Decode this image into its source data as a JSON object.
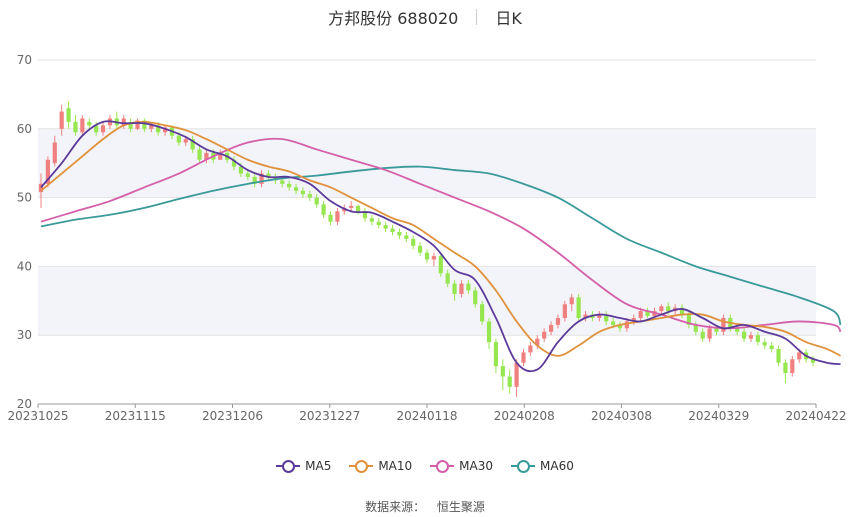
{
  "header": {
    "title": "方邦股份 688020",
    "period": "日K"
  },
  "source": {
    "label": "数据来源：",
    "value": "恒生聚源"
  },
  "colors": {
    "up": "#f08080",
    "down": "#96e650",
    "ma5": "#5b3a9a",
    "ma10": "#e0913c",
    "ma30": "#d45fa8",
    "ma60": "#3a9a9a",
    "band": "#f3f4f9",
    "grid": "#e3e3e3"
  },
  "chart_data": {
    "type": "candlestick",
    "ylim": [
      20,
      70
    ],
    "yticks": [
      20,
      30,
      40,
      50,
      60,
      70
    ],
    "xticks": [
      "20231025",
      "20231115",
      "20231206",
      "20231227",
      "20240118",
      "20240208",
      "20240308",
      "20240329",
      "20240422"
    ],
    "legend": [
      "MA5",
      "MA10",
      "MA30",
      "MA60"
    ],
    "legend_position": "bottom",
    "candles": [
      [
        50.8,
        52.0,
        53.5,
        48.5
      ],
      [
        52.0,
        55.5,
        56.0,
        51.5
      ],
      [
        55.0,
        58.0,
        59.0,
        54.5
      ],
      [
        60.0,
        62.5,
        63.5,
        59.0
      ],
      [
        63.0,
        61.0,
        64.0,
        60.0
      ],
      [
        61.0,
        59.5,
        62.0,
        59.0
      ],
      [
        59.5,
        61.5,
        62.0,
        59.0
      ],
      [
        61.0,
        60.5,
        61.5,
        60.0
      ],
      [
        60.5,
        59.5,
        61.0,
        59.0
      ],
      [
        59.5,
        60.5,
        61.0,
        59.0
      ],
      [
        60.5,
        61.5,
        62.0,
        60.0
      ],
      [
        61.5,
        60.5,
        62.5,
        60.0
      ],
      [
        60.5,
        61.5,
        62.0,
        60.0
      ],
      [
        61.0,
        60.0,
        61.5,
        59.5
      ],
      [
        60.0,
        61.2,
        61.5,
        59.8
      ],
      [
        61.2,
        60.0,
        61.5,
        59.5
      ],
      [
        60.0,
        60.5,
        61.0,
        59.5
      ],
      [
        60.5,
        59.5,
        61.0,
        59.0
      ],
      [
        59.5,
        60.2,
        60.5,
        59.0
      ],
      [
        60.2,
        59.0,
        60.5,
        58.5
      ],
      [
        59.0,
        58.0,
        59.5,
        57.5
      ],
      [
        58.0,
        58.5,
        59.0,
        57.5
      ],
      [
        58.5,
        57.0,
        59.0,
        56.5
      ],
      [
        57.0,
        55.5,
        57.5,
        55.0
      ],
      [
        55.5,
        56.5,
        57.0,
        55.0
      ],
      [
        56.5,
        55.5,
        57.0,
        55.0
      ],
      [
        55.5,
        56.5,
        57.0,
        55.5
      ],
      [
        56.5,
        55.5,
        57.0,
        55.0
      ],
      [
        55.5,
        54.5,
        56.0,
        54.0
      ],
      [
        54.5,
        53.5,
        55.0,
        53.0
      ],
      [
        53.5,
        53.0,
        54.0,
        52.5
      ],
      [
        53.0,
        52.0,
        53.5,
        51.5
      ],
      [
        52.0,
        53.5,
        54.0,
        51.5
      ],
      [
        53.5,
        53.0,
        54.0,
        52.5
      ],
      [
        53.0,
        52.5,
        53.5,
        52.0
      ],
      [
        52.5,
        52.0,
        53.0,
        51.5
      ],
      [
        52.0,
        51.5,
        52.5,
        51.0
      ],
      [
        51.5,
        51.0,
        52.0,
        50.5
      ],
      [
        51.0,
        50.5,
        51.5,
        50.0
      ],
      [
        50.5,
        50.0,
        51.0,
        49.5
      ],
      [
        50.0,
        49.0,
        50.5,
        48.5
      ],
      [
        49.0,
        47.5,
        49.5,
        47.0
      ],
      [
        47.5,
        46.5,
        48.0,
        46.0
      ],
      [
        46.5,
        48.0,
        48.5,
        46.0
      ],
      [
        48.0,
        48.5,
        49.0,
        47.5
      ],
      [
        48.5,
        48.8,
        49.5,
        48.0
      ],
      [
        48.8,
        48.0,
        49.0,
        47.5
      ],
      [
        48.0,
        47.0,
        48.5,
        46.5
      ],
      [
        47.0,
        46.5,
        47.5,
        46.0
      ],
      [
        46.5,
        46.0,
        47.0,
        45.5
      ],
      [
        46.0,
        45.5,
        46.5,
        45.0
      ],
      [
        45.5,
        45.0,
        46.0,
        44.5
      ],
      [
        45.0,
        44.5,
        45.5,
        44.0
      ],
      [
        44.5,
        44.0,
        45.0,
        43.5
      ],
      [
        44.0,
        43.0,
        44.5,
        42.5
      ],
      [
        43.0,
        42.0,
        43.5,
        41.5
      ],
      [
        42.0,
        41.0,
        42.5,
        40.5
      ],
      [
        41.0,
        41.5,
        42.0,
        40.0
      ],
      [
        41.5,
        39.0,
        42.0,
        38.5
      ],
      [
        39.0,
        37.5,
        39.5,
        37.0
      ],
      [
        37.5,
        36.0,
        38.0,
        35.0
      ],
      [
        36.0,
        37.5,
        38.0,
        35.5
      ],
      [
        37.5,
        36.5,
        38.0,
        36.0
      ],
      [
        36.5,
        34.5,
        37.0,
        34.0
      ],
      [
        34.5,
        32.0,
        35.0,
        31.5
      ],
      [
        32.0,
        29.0,
        32.5,
        28.0
      ],
      [
        29.0,
        25.5,
        29.5,
        24.5
      ],
      [
        25.5,
        24.0,
        26.5,
        22.0
      ],
      [
        24.0,
        22.5,
        25.0,
        21.5
      ],
      [
        22.5,
        26.0,
        26.5,
        21.0
      ],
      [
        26.0,
        27.5,
        28.0,
        25.5
      ],
      [
        27.5,
        28.5,
        29.0,
        27.0
      ],
      [
        28.5,
        29.5,
        30.0,
        28.0
      ],
      [
        29.5,
        30.5,
        31.0,
        29.0
      ],
      [
        30.5,
        31.5,
        32.0,
        30.0
      ],
      [
        31.5,
        32.5,
        33.0,
        31.0
      ],
      [
        32.5,
        34.5,
        35.0,
        32.0
      ],
      [
        34.5,
        35.5,
        36.0,
        33.5
      ],
      [
        35.5,
        32.5,
        36.0,
        32.0
      ],
      [
        32.5,
        33.0,
        33.5,
        32.0
      ],
      [
        33.0,
        32.5,
        33.5,
        32.0
      ],
      [
        32.5,
        33.0,
        33.5,
        32.0
      ],
      [
        33.0,
        32.0,
        33.5,
        31.5
      ],
      [
        32.0,
        31.5,
        32.5,
        31.0
      ],
      [
        31.5,
        31.0,
        32.0,
        30.5
      ],
      [
        31.0,
        32.0,
        32.5,
        30.5
      ],
      [
        32.0,
        32.5,
        33.0,
        31.5
      ],
      [
        32.5,
        33.5,
        34.0,
        32.0
      ],
      [
        33.5,
        32.8,
        34.0,
        32.5
      ],
      [
        32.8,
        33.5,
        34.0,
        32.5
      ],
      [
        33.5,
        34.2,
        34.5,
        33.0
      ],
      [
        34.2,
        33.5,
        34.8,
        33.0
      ],
      [
        33.5,
        34.0,
        34.5,
        33.0
      ],
      [
        34.0,
        33.0,
        34.5,
        32.5
      ],
      [
        33.0,
        31.5,
        33.5,
        31.0
      ],
      [
        31.5,
        30.5,
        32.0,
        30.0
      ],
      [
        30.5,
        29.5,
        31.0,
        29.0
      ],
      [
        29.5,
        31.0,
        31.5,
        29.0
      ],
      [
        31.0,
        30.5,
        31.5,
        30.0
      ],
      [
        30.5,
        32.5,
        33.0,
        30.0
      ],
      [
        32.5,
        31.0,
        33.0,
        30.5
      ],
      [
        31.0,
        30.5,
        31.5,
        30.0
      ],
      [
        30.5,
        29.5,
        31.0,
        29.0
      ],
      [
        29.5,
        30.0,
        30.5,
        29.0
      ],
      [
        30.0,
        29.0,
        30.5,
        28.5
      ],
      [
        29.0,
        28.5,
        29.5,
        28.0
      ],
      [
        28.5,
        28.0,
        29.0,
        27.5
      ],
      [
        28.0,
        26.0,
        28.5,
        25.5
      ],
      [
        26.0,
        24.5,
        26.5,
        23.0
      ],
      [
        24.5,
        26.5,
        27.0,
        24.0
      ],
      [
        26.5,
        27.5,
        28.0,
        26.0
      ],
      [
        27.5,
        26.5,
        28.0,
        26.0
      ],
      [
        26.5,
        26.0,
        27.0,
        25.5
      ]
    ],
    "ma5": [
      [
        0,
        51.5
      ],
      [
        3,
        55.0
      ],
      [
        6,
        59.0
      ],
      [
        9,
        61.0
      ],
      [
        12,
        60.8
      ],
      [
        15,
        60.8
      ],
      [
        18,
        60.0
      ],
      [
        21,
        58.8
      ],
      [
        24,
        57.0
      ],
      [
        27,
        56.0
      ],
      [
        30,
        54.0
      ],
      [
        33,
        53.0
      ],
      [
        36,
        53.0
      ],
      [
        39,
        52.0
      ],
      [
        42,
        49.5
      ],
      [
        45,
        48.0
      ],
      [
        48,
        47.8
      ],
      [
        51,
        46.5
      ],
      [
        54,
        45.0
      ],
      [
        57,
        43.0
      ],
      [
        60,
        39.5
      ],
      [
        63,
        38.0
      ],
      [
        66,
        32.5
      ],
      [
        69,
        26.0
      ],
      [
        72,
        25.0
      ],
      [
        75,
        29.0
      ],
      [
        78,
        32.0
      ],
      [
        81,
        33.0
      ],
      [
        84,
        32.5
      ],
      [
        87,
        32.0
      ],
      [
        90,
        33.0
      ],
      [
        93,
        33.8
      ],
      [
        96,
        32.5
      ],
      [
        99,
        31.0
      ],
      [
        102,
        31.5
      ],
      [
        105,
        30.5
      ],
      [
        108,
        29.5
      ],
      [
        111,
        27.0
      ],
      [
        114,
        26.0
      ],
      [
        116,
        25.8
      ]
    ],
    "ma10": [
      [
        0,
        51.0
      ],
      [
        3,
        53.5
      ],
      [
        6,
        56.0
      ],
      [
        9,
        58.5
      ],
      [
        12,
        60.5
      ],
      [
        15,
        61.0
      ],
      [
        18,
        60.5
      ],
      [
        21,
        59.8
      ],
      [
        24,
        58.5
      ],
      [
        27,
        57.0
      ],
      [
        30,
        55.5
      ],
      [
        33,
        54.5
      ],
      [
        36,
        53.8
      ],
      [
        39,
        52.5
      ],
      [
        42,
        51.5
      ],
      [
        45,
        50.0
      ],
      [
        48,
        48.5
      ],
      [
        51,
        47.0
      ],
      [
        54,
        46.0
      ],
      [
        57,
        44.0
      ],
      [
        60,
        42.0
      ],
      [
        63,
        40.0
      ],
      [
        66,
        36.5
      ],
      [
        69,
        32.0
      ],
      [
        72,
        28.5
      ],
      [
        75,
        27.0
      ],
      [
        78,
        28.5
      ],
      [
        81,
        30.5
      ],
      [
        84,
        31.5
      ],
      [
        87,
        32.0
      ],
      [
        90,
        32.5
      ],
      [
        93,
        33.0
      ],
      [
        96,
        33.0
      ],
      [
        99,
        32.0
      ],
      [
        102,
        31.5
      ],
      [
        105,
        31.2
      ],
      [
        108,
        30.5
      ],
      [
        111,
        29.0
      ],
      [
        114,
        28.0
      ],
      [
        116,
        27.0
      ]
    ],
    "ma30": [
      [
        0,
        46.5
      ],
      [
        5,
        48.0
      ],
      [
        10,
        49.5
      ],
      [
        15,
        51.5
      ],
      [
        20,
        53.5
      ],
      [
        25,
        56.0
      ],
      [
        30,
        58.0
      ],
      [
        35,
        58.5
      ],
      [
        40,
        57.0
      ],
      [
        45,
        55.5
      ],
      [
        50,
        54.0
      ],
      [
        55,
        52.0
      ],
      [
        60,
        50.0
      ],
      [
        65,
        48.0
      ],
      [
        70,
        45.5
      ],
      [
        75,
        42.0
      ],
      [
        80,
        38.0
      ],
      [
        85,
        34.5
      ],
      [
        90,
        33.0
      ],
      [
        95,
        31.5
      ],
      [
        100,
        31.0
      ],
      [
        105,
        31.5
      ],
      [
        110,
        32.0
      ],
      [
        115,
        31.5
      ],
      [
        116,
        30.5
      ]
    ],
    "ma60": [
      [
        0,
        45.8
      ],
      [
        5,
        46.8
      ],
      [
        10,
        47.5
      ],
      [
        15,
        48.5
      ],
      [
        20,
        49.8
      ],
      [
        25,
        51.0
      ],
      [
        30,
        52.0
      ],
      [
        35,
        52.8
      ],
      [
        40,
        53.2
      ],
      [
        45,
        53.8
      ],
      [
        50,
        54.3
      ],
      [
        55,
        54.5
      ],
      [
        60,
        54.0
      ],
      [
        65,
        53.5
      ],
      [
        70,
        52.0
      ],
      [
        75,
        50.0
      ],
      [
        80,
        47.0
      ],
      [
        85,
        44.0
      ],
      [
        90,
        42.0
      ],
      [
        95,
        40.0
      ],
      [
        100,
        38.5
      ],
      [
        105,
        37.0
      ],
      [
        110,
        35.5
      ],
      [
        115,
        33.5
      ],
      [
        116,
        31.5
      ]
    ]
  }
}
